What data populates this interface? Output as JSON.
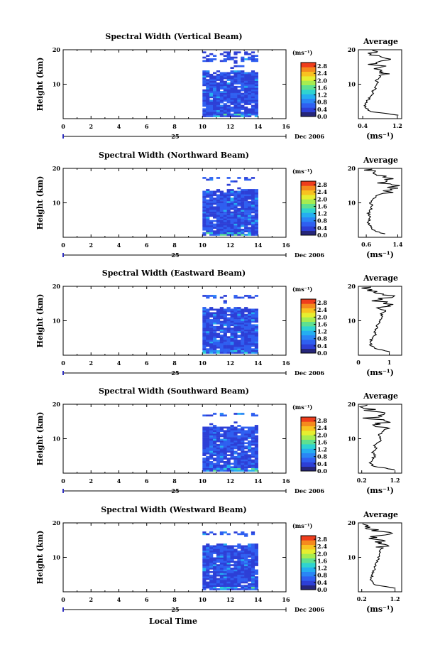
{
  "figure": {
    "bottom_label": "Local Time",
    "date_day": "25",
    "date_label": "Dec 2006",
    "unit_label": "(ms⁻¹)"
  },
  "chart_data": [
    {
      "type": "heatmap",
      "title": "Spectral Width (Vertical Beam)",
      "ylabel": "Height (km)",
      "x_ticks": [
        "0",
        "2",
        "4",
        "6",
        "8",
        "10",
        "12",
        "14",
        "16"
      ],
      "xlim": [
        0,
        16
      ],
      "y_ticks": [
        "10",
        "20"
      ],
      "ylim": [
        0,
        20
      ],
      "data_extent": {
        "x": [
          10,
          14
        ],
        "y": [
          0.5,
          19.5
        ]
      },
      "colorbar": {
        "ticks": [
          "0.0",
          "0.4",
          "0.8",
          "1.2",
          "1.6",
          "2.0",
          "2.4",
          "2.8"
        ],
        "range": [
          0,
          3.0
        ]
      },
      "average": {
        "title": "Average",
        "x_ticks": [
          "0.4",
          "1.2"
        ],
        "xlim": [
          0.3,
          1.3
        ],
        "xlabel": "(ms⁻¹)",
        "y_ticks": [
          "10",
          "20"
        ],
        "height": [
          1,
          2,
          3,
          4,
          5,
          6,
          7,
          8,
          9,
          10,
          11,
          12,
          13,
          14,
          15,
          16,
          17,
          18,
          19,
          20
        ],
        "values": [
          1.25,
          0.6,
          0.48,
          0.45,
          0.5,
          0.56,
          0.62,
          0.64,
          0.7,
          0.75,
          0.72,
          0.78,
          0.85,
          0.68,
          0.9,
          0.55,
          1.0,
          0.75,
          0.65,
          0.5
        ]
      }
    },
    {
      "type": "heatmap",
      "title": "Spectral Width (Northward Beam)",
      "ylabel": "Height (km)",
      "x_ticks": [
        "0",
        "2",
        "4",
        "6",
        "8",
        "10",
        "12",
        "14",
        "16"
      ],
      "xlim": [
        0,
        16
      ],
      "y_ticks": [
        "10",
        "20"
      ],
      "ylim": [
        0,
        20
      ],
      "data_extent": {
        "x": [
          10,
          14
        ],
        "y": [
          0.5,
          17.5
        ]
      },
      "colorbar": {
        "ticks": [
          "0.0",
          "0.4",
          "0.8",
          "1.2",
          "1.6",
          "2.0",
          "2.4",
          "2.8"
        ],
        "range": [
          0,
          3.0
        ]
      },
      "average": {
        "title": "Average",
        "x_ticks": [
          "0.6",
          "1.4"
        ],
        "xlim": [
          0.4,
          1.5
        ],
        "xlabel": "(ms⁻¹)",
        "y_ticks": [
          "10",
          "20"
        ],
        "height": [
          1,
          2,
          3,
          4,
          5,
          6,
          7,
          8,
          9,
          10,
          11,
          12,
          13,
          14,
          15,
          16,
          17,
          18,
          19,
          20
        ],
        "values": [
          1.05,
          0.8,
          0.72,
          0.65,
          0.68,
          0.7,
          0.66,
          0.72,
          0.75,
          0.7,
          0.78,
          0.85,
          1.1,
          1.2,
          1.3,
          0.9,
          1.35,
          1.0,
          0.7,
          0.6
        ]
      }
    },
    {
      "type": "heatmap",
      "title": "Spectral Width (Eastward Beam)",
      "ylabel": "Height (km)",
      "x_ticks": [
        "0",
        "2",
        "4",
        "6",
        "8",
        "10",
        "12",
        "14",
        "16"
      ],
      "xlim": [
        0,
        16
      ],
      "y_ticks": [
        "10",
        "20"
      ],
      "ylim": [
        0,
        20
      ],
      "data_extent": {
        "x": [
          10,
          14
        ],
        "y": [
          0.5,
          17.5
        ]
      },
      "colorbar": {
        "ticks": [
          "0.0",
          "0.4",
          "0.8",
          "1.2",
          "1.6",
          "2.0",
          "2.4",
          "2.8"
        ],
        "range": [
          0,
          3.0
        ]
      },
      "average": {
        "title": "Average",
        "x_ticks": [
          "0",
          "1"
        ],
        "xlim": [
          0,
          1.4
        ],
        "xlabel": "(ms⁻¹)",
        "y_ticks": [
          "10",
          "20"
        ],
        "height": [
          1,
          2,
          3,
          4,
          5,
          6,
          7,
          8,
          9,
          10,
          11,
          12,
          13,
          14,
          15,
          16,
          17,
          18,
          19,
          20
        ],
        "values": [
          1.0,
          0.55,
          0.4,
          0.38,
          0.45,
          0.55,
          0.5,
          0.6,
          0.62,
          0.7,
          0.78,
          0.75,
          0.88,
          0.8,
          0.95,
          0.5,
          1.1,
          0.6,
          0.35,
          0.3
        ]
      }
    },
    {
      "type": "heatmap",
      "title": "Spectral Width (Southward Beam)",
      "ylabel": "Height (km)",
      "x_ticks": [
        "0",
        "2",
        "4",
        "6",
        "8",
        "10",
        "12",
        "14",
        "16"
      ],
      "xlim": [
        0,
        16
      ],
      "y_ticks": [
        "10",
        "20"
      ],
      "ylim": [
        0,
        20
      ],
      "data_extent": {
        "x": [
          10,
          14
        ],
        "y": [
          0.5,
          17.5
        ]
      },
      "colorbar": {
        "ticks": [
          "0.0",
          "0.4",
          "0.8",
          "1.2",
          "1.6",
          "2.0",
          "2.4",
          "2.8"
        ],
        "range": [
          0,
          3.0
        ]
      },
      "average": {
        "title": "Average",
        "x_ticks": [
          "0.2",
          "1.2"
        ],
        "xlim": [
          0.1,
          1.4
        ],
        "xlabel": "(ms⁻¹)",
        "y_ticks": [
          "10",
          "20"
        ],
        "height": [
          1,
          2,
          3,
          4,
          5,
          6,
          7,
          8,
          9,
          10,
          11,
          12,
          13,
          14,
          15,
          16,
          17,
          18,
          19,
          20
        ],
        "values": [
          1.2,
          0.55,
          0.45,
          0.5,
          0.6,
          0.52,
          0.65,
          0.58,
          0.72,
          0.78,
          0.7,
          0.85,
          0.9,
          0.65,
          0.95,
          0.45,
          1.0,
          0.55,
          0.3,
          0.25
        ]
      }
    },
    {
      "type": "heatmap",
      "title": "Spectral Width (Westward Beam)",
      "ylabel": "Height (km)",
      "x_ticks": [
        "0",
        "2",
        "4",
        "6",
        "8",
        "10",
        "12",
        "14",
        "16"
      ],
      "xlim": [
        0,
        16
      ],
      "y_ticks": [
        "10",
        "20"
      ],
      "ylim": [
        0,
        20
      ],
      "data_extent": {
        "x": [
          10,
          14
        ],
        "y": [
          0.5,
          17.5
        ]
      },
      "colorbar": {
        "ticks": [
          "0.0",
          "0.4",
          "0.8",
          "1.2",
          "1.6",
          "2.0",
          "2.4",
          "2.8"
        ],
        "range": [
          0,
          3.0
        ]
      },
      "average": {
        "title": "Average",
        "x_ticks": [
          "0.2",
          "1.2"
        ],
        "xlim": [
          0.1,
          1.4
        ],
        "xlabel": "(ms⁻¹)",
        "y_ticks": [
          "10",
          "20"
        ],
        "height": [
          1,
          2,
          3,
          4,
          5,
          6,
          7,
          8,
          9,
          10,
          11,
          12,
          13,
          14,
          15,
          16,
          17,
          18,
          19,
          20
        ],
        "values": [
          1.2,
          0.6,
          0.5,
          0.48,
          0.52,
          0.55,
          0.6,
          0.62,
          0.68,
          0.7,
          0.75,
          0.72,
          0.85,
          0.9,
          0.7,
          0.5,
          1.05,
          0.6,
          0.3,
          0.2
        ]
      }
    }
  ]
}
